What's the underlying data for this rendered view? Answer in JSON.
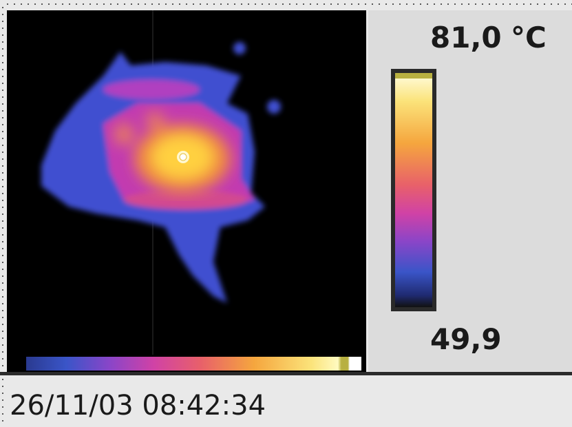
{
  "scale": {
    "max": "81,0",
    "unit": "°C",
    "min": "49,9"
  },
  "timestamp": "26/11/03 08:42:34"
}
